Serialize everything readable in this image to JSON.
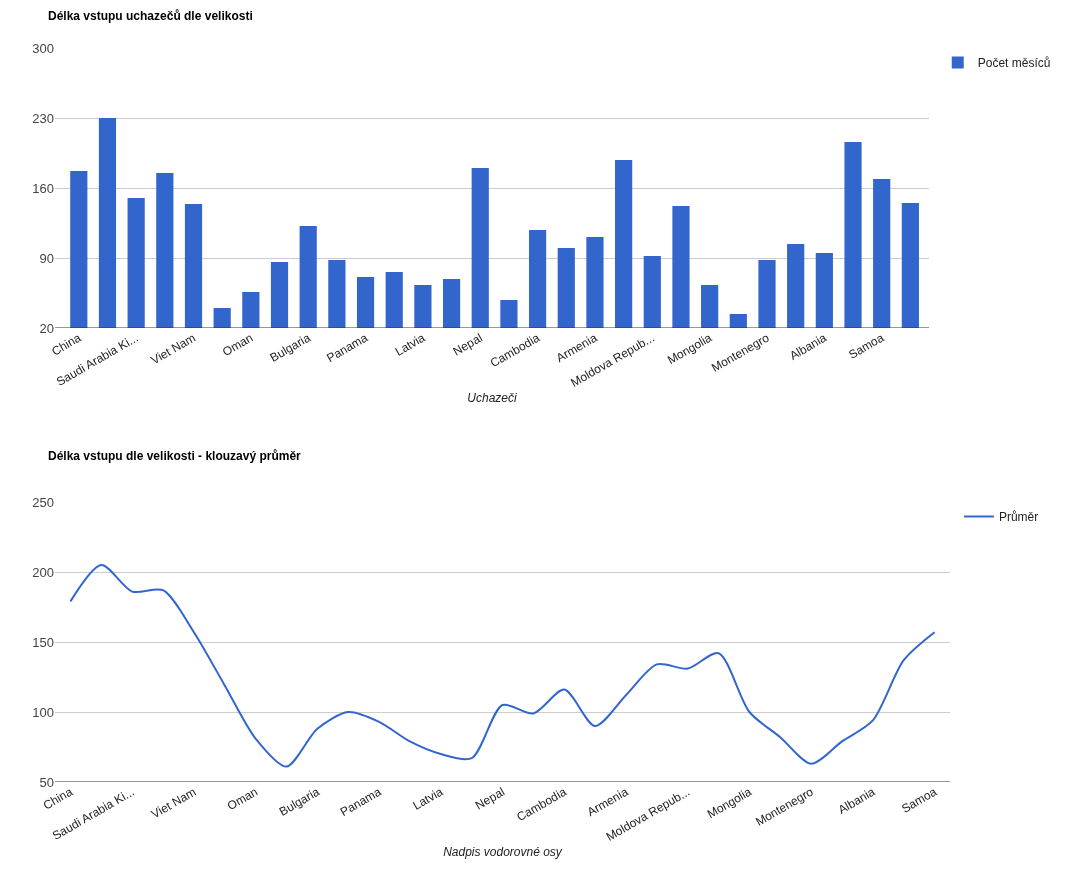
{
  "chart_data": [
    {
      "type": "bar",
      "title": "Délka vstupu uchazečů dle velikosti",
      "xlabel": "Uchazeči",
      "categories": [
        "China",
        null,
        "Saudi Arabia Ki...",
        null,
        "Viet Nam",
        null,
        "Oman",
        null,
        "Bulgaria",
        null,
        "Panama",
        null,
        "Latvia",
        null,
        "Nepal",
        null,
        "Cambodia",
        null,
        "Armenia",
        null,
        "Moldova Repub...",
        null,
        "Mongolia",
        null,
        "Montenegro",
        null,
        "Albania",
        null,
        "Samoa",
        null
      ],
      "series": [
        {
          "name": "Počet měsíců",
          "color": "#3366cc",
          "values": [
            177,
            230,
            150,
            175,
            144,
            40,
            56,
            86,
            122,
            88,
            71,
            76,
            63,
            69,
            180,
            48,
            118,
            100,
            111,
            188,
            92,
            142,
            63,
            34,
            88,
            104,
            95,
            206,
            169,
            145
          ]
        }
      ],
      "ylim": [
        20,
        300
      ],
      "yticks": [
        20,
        90,
        160,
        230,
        300
      ],
      "grid": "y",
      "legend": "top right"
    },
    {
      "type": "line",
      "title": "Délka vstupu dle velikosti - klouzavý průměr",
      "xlabel": "Nadpis vodorovné osy",
      "categories": [
        "China",
        null,
        "Saudi Arabia Ki...",
        null,
        "Viet Nam",
        null,
        "Oman",
        null,
        "Bulgaria",
        null,
        "Panama",
        null,
        "Latvia",
        null,
        "Nepal",
        null,
        "Cambodia",
        null,
        "Armenia",
        null,
        "Moldova Repub...",
        null,
        "Mongolia",
        null,
        "Montenegro",
        null,
        "Albania",
        null,
        "Samoa"
      ],
      "series": [
        {
          "name": "Průměr",
          "color": "#3366cc",
          "values": [
            179,
            205,
            186,
            187,
            157,
            119,
            81,
            61,
            88,
            100,
            93,
            79,
            70,
            67,
            105,
            99,
            116,
            90,
            112,
            134,
            131,
            142,
            100,
            82,
            63,
            79,
            94,
            137,
            157
          ]
        }
      ],
      "ylim": [
        50,
        250
      ],
      "yticks": [
        50,
        100,
        150,
        200,
        250
      ],
      "grid": "y",
      "legend": "top right",
      "marker": "none"
    }
  ]
}
